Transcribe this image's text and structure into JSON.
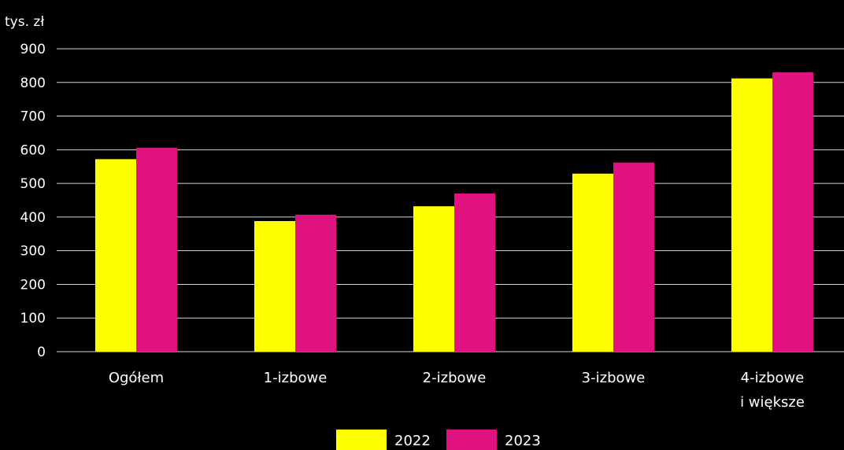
{
  "chart_data": {
    "type": "bar",
    "unit_label": "tys. zł",
    "categories": [
      [
        "Ogółem"
      ],
      [
        "1-izbowe"
      ],
      [
        "2-izbowe"
      ],
      [
        "3-izbowe"
      ],
      [
        "4-izbowe",
        "i większe"
      ]
    ],
    "series": [
      {
        "name": "2022",
        "color": "#ffff00",
        "values": [
          572,
          388,
          432,
          529,
          812
        ]
      },
      {
        "name": "2023",
        "color": "#e0127f",
        "values": [
          606,
          407,
          470,
          562,
          830
        ]
      }
    ],
    "ylim": [
      0,
      900
    ],
    "yticks": [
      0,
      100,
      200,
      300,
      400,
      500,
      600,
      700,
      800,
      900
    ],
    "grid": true,
    "legend_position": "bottom-center",
    "background": "#000000",
    "grid_color": "#d9d9d9"
  }
}
